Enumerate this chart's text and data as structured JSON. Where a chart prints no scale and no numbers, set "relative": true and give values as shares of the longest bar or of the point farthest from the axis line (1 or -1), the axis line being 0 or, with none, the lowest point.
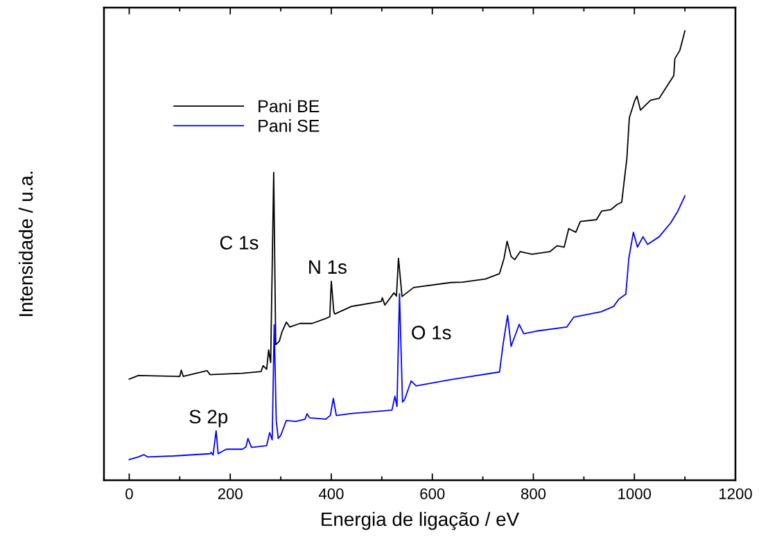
{
  "chart_data": {
    "type": "line",
    "xlabel": "Energia de ligação / eV",
    "ylabel": "Intensidade / u.a.",
    "relative": true,
    "legend": "top left",
    "grid": false,
    "xlim": [
      -50,
      1200
    ],
    "xticks": [
      0,
      {
        "value": 100,
        "label": null
      },
      200,
      {
        "value": 300,
        "label": null
      },
      400,
      {
        "value": 500,
        "label": null
      },
      600,
      {
        "value": 700,
        "label": null
      },
      800,
      {
        "value": 900,
        "label": null
      },
      1000,
      {
        "value": 1100,
        "label": null
      },
      1200
    ],
    "annotations": [
      {
        "text": "C 1s",
        "x": 286,
        "y": 0.525
      },
      {
        "text": "N 1s",
        "x": 400,
        "y": 0.443
      },
      {
        "text": "O 1s",
        "x": 535,
        "y": 0.415
      },
      {
        "text": "S 2p",
        "x": 172,
        "y": 0.11
      }
    ],
    "series": [
      {
        "name": "Pani BE",
        "color": "#000000",
        "x": [
          0,
          18,
          100,
          103,
          107,
          154,
          160,
          224,
          261,
          265,
          272,
          276,
          280,
          286,
          290,
          297,
          302,
          311,
          318,
          338,
          362,
          389,
          397,
          400,
          405,
          407,
          440,
          499,
          501,
          506,
          524,
          529,
          533,
          540,
          563,
          636,
          660,
          705,
          733,
          742,
          748,
          756,
          763,
          774,
          797,
          833,
          847,
          861,
          870,
          884,
          893,
          925,
          935,
          953,
          966,
          975,
          980,
          985,
          990,
          1001,
          1005,
          1012,
          1032,
          1049,
          1065,
          1078,
          1080,
          1090,
          1100
        ],
        "values": [
          0.225,
          0.233,
          0.231,
          0.245,
          0.231,
          0.244,
          0.235,
          0.238,
          0.242,
          0.255,
          0.247,
          0.29,
          0.262,
          0.685,
          0.302,
          0.309,
          0.329,
          0.352,
          0.341,
          0.349,
          0.349,
          0.36,
          0.364,
          0.443,
          0.375,
          0.37,
          0.387,
          0.398,
          0.406,
          0.39,
          0.417,
          0.41,
          0.494,
          0.409,
          0.429,
          0.44,
          0.441,
          0.448,
          0.46,
          0.494,
          0.532,
          0.498,
          0.491,
          0.509,
          0.503,
          0.509,
          0.522,
          0.519,
          0.56,
          0.552,
          0.576,
          0.58,
          0.599,
          0.602,
          0.614,
          0.619,
          0.668,
          0.715,
          0.807,
          0.846,
          0.855,
          0.824,
          0.846,
          0.85,
          0.878,
          0.901,
          0.938,
          0.957,
          1.0
        ]
      },
      {
        "name": "Pani SE",
        "color": "#0000ff",
        "x": [
          0,
          18,
          29,
          36,
          87,
          160,
          162,
          166,
          172,
          176,
          192,
          224,
          231,
          235,
          242,
          272,
          278,
          283,
          287,
          291,
          295,
          300,
          311,
          330,
          348,
          352,
          357,
          389,
          398,
          404,
          410,
          435,
          520,
          526,
          530,
          535,
          541,
          545,
          558,
          568,
          636,
          660,
          733,
          740,
          749,
          756,
          772,
          781,
          806,
          866,
          880,
          934,
          959,
          969,
          983,
          989,
          998,
          1006,
          1017,
          1026,
          1049,
          1072,
          1086,
          1100
        ],
        "values": [
          0.046,
          0.052,
          0.057,
          0.052,
          0.054,
          0.059,
          0.062,
          0.056,
          0.11,
          0.059,
          0.069,
          0.069,
          0.074,
          0.093,
          0.073,
          0.077,
          0.106,
          0.09,
          0.346,
          0.133,
          0.093,
          0.1,
          0.133,
          0.131,
          0.136,
          0.148,
          0.139,
          0.136,
          0.144,
          0.182,
          0.144,
          0.148,
          0.156,
          0.187,
          0.164,
          0.415,
          0.174,
          0.179,
          0.221,
          0.21,
          0.224,
          0.228,
          0.241,
          0.302,
          0.367,
          0.298,
          0.347,
          0.326,
          0.332,
          0.341,
          0.363,
          0.375,
          0.387,
          0.403,
          0.414,
          0.494,
          0.552,
          0.519,
          0.542,
          0.525,
          0.542,
          0.573,
          0.599,
          0.633
        ]
      }
    ]
  }
}
